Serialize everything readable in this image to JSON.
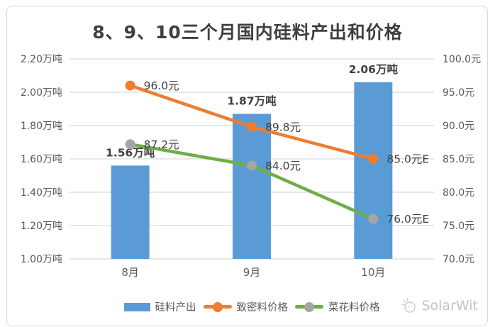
{
  "chart_data": {
    "type": "bar+line-combo",
    "title": "8、9、10三个月国内硅料产出和价格",
    "categories": [
      "8月",
      "9月",
      "10月"
    ],
    "series": [
      {
        "name": "硅料产出",
        "type": "bar",
        "axis": "left",
        "color": "#5B9BD5",
        "values": [
          1.56,
          1.87,
          2.06
        ],
        "labels": [
          "1.56万吨",
          "1.87万吨",
          "2.06万吨"
        ]
      },
      {
        "name": "致密料价格",
        "type": "line",
        "axis": "right",
        "color": "#ED7D31",
        "marker_color": "#ED7D31",
        "values": [
          96.0,
          89.8,
          85.0
        ],
        "labels": [
          "96.0元",
          "89.8元",
          "85.0元E"
        ]
      },
      {
        "name": "菜花料价格",
        "type": "line",
        "axis": "right",
        "color": "#70AD47",
        "marker_color": "#A5A5A5",
        "values": [
          87.2,
          84.0,
          76.0
        ],
        "labels": [
          "87.2元",
          "84.0元",
          "76.0元E"
        ]
      }
    ],
    "left_axis": {
      "min": 1.0,
      "max": 2.2,
      "unit": "万吨",
      "ticks": [
        {
          "v": 2.2,
          "label": "2.20万吨"
        },
        {
          "v": 2.0,
          "label": "2.00万吨"
        },
        {
          "v": 1.8,
          "label": "1.80万吨"
        },
        {
          "v": 1.6,
          "label": "1.60万吨"
        },
        {
          "v": 1.4,
          "label": "1.40万吨"
        },
        {
          "v": 1.2,
          "label": "1.20万吨"
        },
        {
          "v": 1.0,
          "label": "1.00万吨"
        }
      ]
    },
    "right_axis": {
      "min": 70,
      "max": 100,
      "unit": "元",
      "ticks": [
        {
          "v": 100,
          "label": "100.0元"
        },
        {
          "v": 95,
          "label": "95.0元"
        },
        {
          "v": 90,
          "label": "90.0元"
        },
        {
          "v": 85,
          "label": "85.0元"
        },
        {
          "v": 80,
          "label": "80.0元"
        },
        {
          "v": 75,
          "label": "75.0元"
        },
        {
          "v": 70,
          "label": "70.0元"
        }
      ]
    },
    "grid": true,
    "grid_color": "#D9D9D9",
    "tick_text_color": "#595959",
    "label_text_color": "#404040",
    "legend_position": "bottom"
  },
  "watermark": {
    "text": "SolarWit",
    "icon": "sun-sketch-icon",
    "color": "#C4C4C4"
  }
}
